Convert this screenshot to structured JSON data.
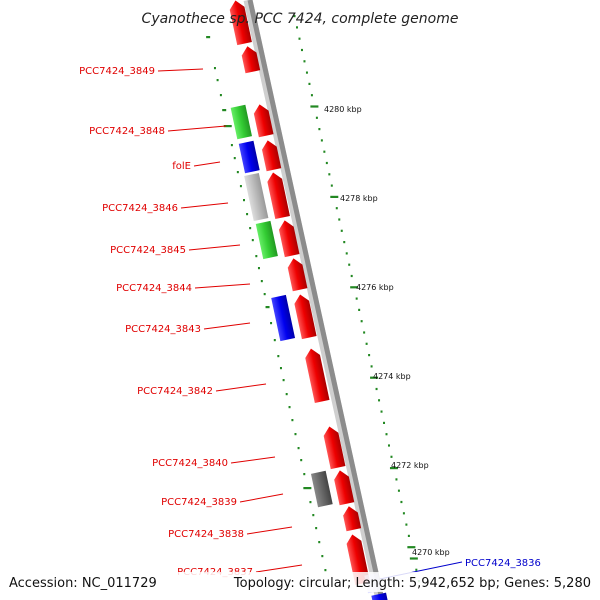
{
  "title": "Cyanothece sp. PCC 7424, complete genome",
  "footer": {
    "accession": "Accession: NC_011729",
    "info": "Topology: circular; Length: 5,942,652 bp; Genes: 5,280"
  },
  "gene_labels": [
    "PCC7424_3849",
    "PCC7424_3848",
    "folE",
    "PCC7424_3846",
    "PCC7424_3845",
    "PCC7424_3844",
    "PCC7424_3843",
    "PCC7424_3842",
    "PCC7424_3840",
    "PCC7424_3839",
    "PCC7424_3838",
    "PCC7424_3837",
    "PCC7424_3836"
  ],
  "tick_labels": [
    "4280 kbp",
    "4278 kbp",
    "4276 kbp",
    "4274 kbp",
    "4272 kbp",
    "4270 kbp"
  ],
  "colors": {
    "forward": "#ee0000",
    "green": "#33cc33",
    "blue": "#0000ee",
    "gray_light": "#bbbbbb",
    "gray_dark": "#666666",
    "backbone": "#999999",
    "gc": "#228822",
    "label_red": "#e00000",
    "label_blue": "#0000cc"
  }
}
